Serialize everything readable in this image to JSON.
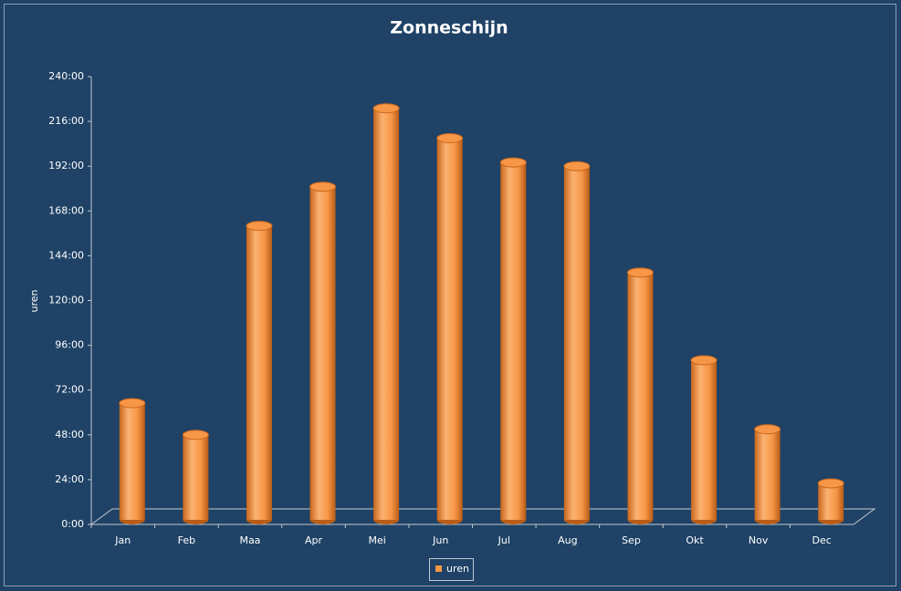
{
  "chart_data": {
    "type": "bar",
    "title": "Zonneschijn",
    "y_label": "uren",
    "categories": [
      "Jan",
      "Feb",
      "Maa",
      "Apr",
      "Mei",
      "Jun",
      "Jul",
      "Aug",
      "Sep",
      "Okt",
      "Nov",
      "Dec"
    ],
    "series": [
      {
        "name": "uren",
        "color": "#f79646",
        "values": [
          65,
          48,
          160,
          181,
          223,
          207,
          194,
          192,
          135,
          88,
          51,
          22
        ]
      }
    ],
    "ylim": [
      0,
      240
    ],
    "yticks": [
      {
        "value": 0,
        "label": "0:00"
      },
      {
        "value": 24,
        "label": "24:00"
      },
      {
        "value": 48,
        "label": "48:00"
      },
      {
        "value": 72,
        "label": "72:00"
      },
      {
        "value": 96,
        "label": "96:00"
      },
      {
        "value": 120,
        "label": "120:00"
      },
      {
        "value": 144,
        "label": "144:00"
      },
      {
        "value": 168,
        "label": "168:00"
      },
      {
        "value": 192,
        "label": "192:00"
      },
      {
        "value": 216,
        "label": "216:00"
      },
      {
        "value": 240,
        "label": "240:00"
      }
    ],
    "legend": "bottom"
  }
}
